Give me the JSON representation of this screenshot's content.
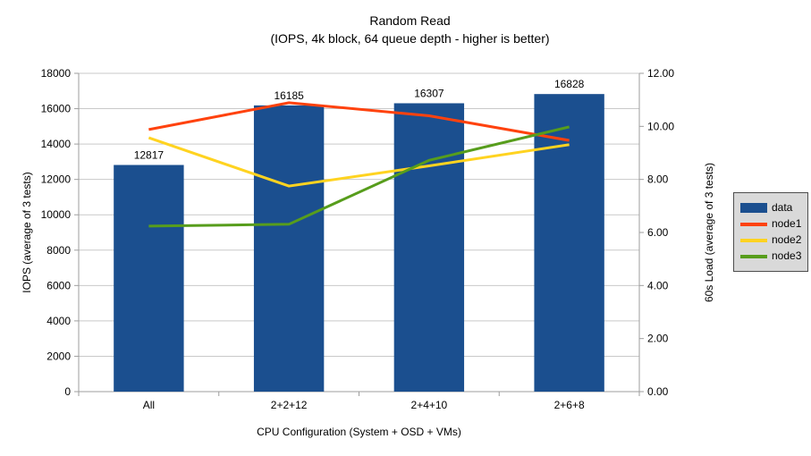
{
  "title": "Random Read",
  "subtitle": "(IOPS, 4k block, 64 queue depth - higher is better)",
  "chart_data": {
    "type": "bar",
    "subtype": "bars-with-line-overlay-dual-axis",
    "categories": [
      "All",
      "2+2+12",
      "2+4+10",
      "2+6+8"
    ],
    "bar_series": {
      "name": "data",
      "color": "#1b4f8f",
      "axis": "left",
      "values": [
        12817,
        16185,
        16307,
        16828
      ],
      "value_labels": [
        "12817",
        "16185",
        "16307",
        "16828"
      ]
    },
    "line_series": [
      {
        "name": "node1",
        "color": "#ff420e",
        "axis": "right",
        "values": [
          9.88,
          10.89,
          10.4,
          9.47
        ]
      },
      {
        "name": "node2",
        "color": "#ffd320",
        "axis": "right",
        "values": [
          9.57,
          7.75,
          8.51,
          9.31
        ]
      },
      {
        "name": "node3",
        "color": "#579d1c",
        "axis": "right",
        "values": [
          6.24,
          6.31,
          8.72,
          9.98
        ]
      }
    ],
    "x_axis": {
      "label": "CPU Configuration (System + OSD + VMs)"
    },
    "left_axis": {
      "label": "IOPS (average of 3 tests)",
      "min": 0,
      "max": 18000,
      "step": 2000,
      "tick_labels": [
        "0",
        "2000",
        "4000",
        "6000",
        "8000",
        "10000",
        "12000",
        "14000",
        "16000",
        "18000"
      ]
    },
    "right_axis": {
      "label": "60s Load (average of 3 tests)",
      "min": 0,
      "max": 12,
      "step": 2,
      "tick_labels": [
        "0.00",
        "2.00",
        "4.00",
        "6.00",
        "8.00",
        "10.00",
        "12.00"
      ]
    },
    "legend": {
      "position": "right",
      "entries": [
        "data",
        "node1",
        "node2",
        "node3"
      ]
    },
    "grid": {
      "horizontal": true,
      "vertical": false
    },
    "colors": {
      "background": "#ffffff",
      "grid": "#c9c9c9",
      "axis": "#9e9e9e",
      "text": "#000000",
      "legend_bg": "#d9d9d9",
      "legend_border": "#4d4d4d"
    }
  }
}
